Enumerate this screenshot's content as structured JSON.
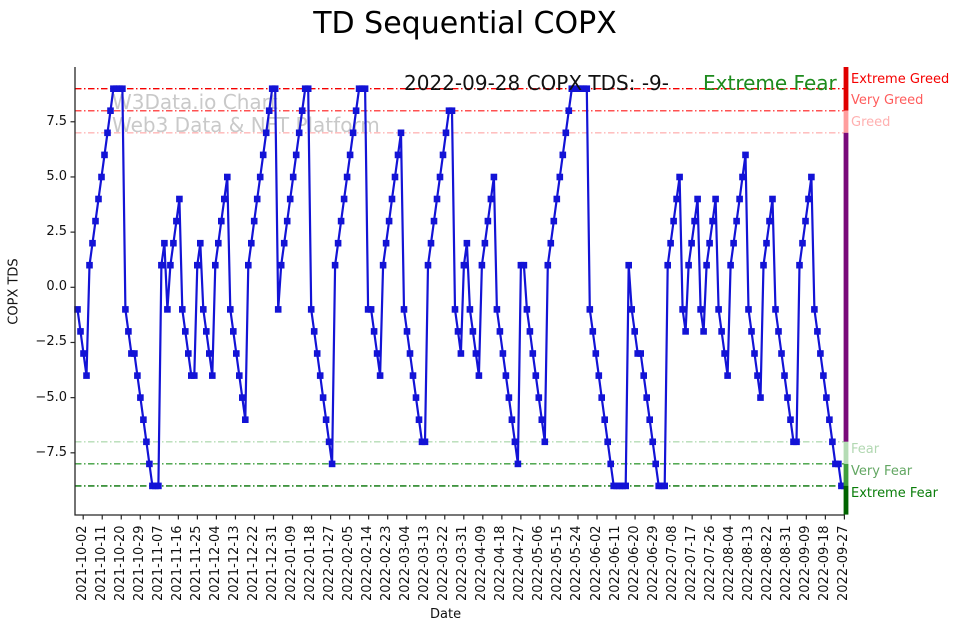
{
  "title": "TD Sequential COPX",
  "annotation": {
    "date_text": "2022-09-28 COPX TDS: -9-",
    "sentiment_text": "Extreme Fear",
    "sentiment_color": "#1e8b1e"
  },
  "watermark": {
    "line1": "W3Data.io Chart",
    "line2": "Web3 Data & NFT Platform"
  },
  "chart_data": {
    "type": "line",
    "title": "TD Sequential COPX",
    "xlabel": "Date",
    "ylabel": "COPX TDS",
    "ylim": [
      -10.3,
      10.0
    ],
    "grid": false,
    "legend_position": "none",
    "line_color": "#1313d6",
    "marker": "square",
    "marker_color": "#1313d6",
    "x_tick_labels": [
      "2021-10-02",
      "2021-10-11",
      "2021-10-20",
      "2021-10-29",
      "2021-11-07",
      "2021-11-16",
      "2021-11-25",
      "2021-12-04",
      "2021-12-13",
      "2021-12-22",
      "2021-12-31",
      "2022-01-09",
      "2022-01-18",
      "2022-01-27",
      "2022-02-05",
      "2022-02-14",
      "2022-02-23",
      "2022-03-04",
      "2022-03-13",
      "2022-03-22",
      "2022-03-31",
      "2022-04-09",
      "2022-04-18",
      "2022-04-27",
      "2022-05-06",
      "2022-05-15",
      "2022-05-24",
      "2022-06-02",
      "2022-06-11",
      "2022-06-20",
      "2022-06-29",
      "2022-07-08",
      "2022-07-17",
      "2022-07-26",
      "2022-08-04",
      "2022-08-13",
      "2022-08-22",
      "2022-08-31",
      "2022-09-09",
      "2022-09-18",
      "2022-09-27"
    ],
    "y_ticks": [
      {
        "value": 7.5,
        "label": "7.5"
      },
      {
        "value": 5.0,
        "label": "5.0"
      },
      {
        "value": 2.5,
        "label": "2.5"
      },
      {
        "value": 0.0,
        "label": "0.0"
      },
      {
        "value": -2.5,
        "label": "−2.5"
      },
      {
        "value": -5.0,
        "label": "−5.0"
      },
      {
        "value": -7.5,
        "label": "−7.5"
      }
    ],
    "thresholds": [
      {
        "value": 9,
        "label": "Extreme Greed",
        "line_color": "#f50000",
        "label_color": "#f50000",
        "label_y_center": 80
      },
      {
        "value": 8,
        "label": "Very Greed",
        "line_color": "#ff5252",
        "label_color": "#ff5c5c",
        "label_y_center": 101
      },
      {
        "value": 7,
        "label": "Greed",
        "line_color": "#ffb6b6",
        "label_color": "#ffb0b0",
        "label_y_center": 123
      },
      {
        "value": -7,
        "label": "Fear",
        "line_color": "#b5dcb5",
        "label_color": "#b2d8b2",
        "label_y_center": 450
      },
      {
        "value": -8,
        "label": "Very Fear",
        "line_color": "#3d9e3d",
        "label_color": "#63a763",
        "label_y_center": 472
      },
      {
        "value": -9,
        "label": "Extreme Fear",
        "line_color": "#007000",
        "label_color": "#0a7d0a",
        "label_y_center": 494
      }
    ],
    "right_spine_segments": [
      {
        "from_value": 10.0,
        "to_value": 8,
        "color": "#e00000"
      },
      {
        "from_value": 8,
        "to_value": 7,
        "color": "#ff9d9d"
      },
      {
        "from_value": 7,
        "to_value": -7,
        "color": "#7a0a7a"
      },
      {
        "from_value": -7,
        "to_value": -8,
        "color": "#b5dcb5"
      },
      {
        "from_value": -8,
        "to_value": -9,
        "color": "#3d9e3d"
      },
      {
        "from_value": -9,
        "to_value": -10.3,
        "color": "#006400"
      }
    ],
    "series": [
      {
        "name": "COPX TDS",
        "values": [
          -1,
          -2,
          -3,
          -4,
          1,
          2,
          3,
          4,
          5,
          6,
          7,
          8,
          9,
          9,
          9,
          9,
          -1,
          -2,
          -3,
          -3,
          -4,
          -5,
          -6,
          -7,
          -8,
          -9,
          -9,
          -9,
          1,
          2,
          -1,
          1,
          2,
          3,
          4,
          -1,
          -2,
          -3,
          -4,
          -4,
          1,
          2,
          -1,
          -2,
          -3,
          -4,
          1,
          2,
          3,
          4,
          5,
          -1,
          -2,
          -3,
          -4,
          -5,
          -6,
          1,
          2,
          3,
          4,
          5,
          6,
          7,
          8,
          9,
          9,
          -1,
          1,
          2,
          3,
          4,
          5,
          6,
          7,
          8,
          9,
          9,
          -1,
          -2,
          -3,
          -4,
          -5,
          -6,
          -7,
          -8,
          1,
          2,
          3,
          4,
          5,
          6,
          7,
          8,
          9,
          9,
          9,
          -1,
          -1,
          -2,
          -3,
          -4,
          1,
          2,
          3,
          4,
          5,
          6,
          7,
          -1,
          -2,
          -3,
          -4,
          -5,
          -6,
          -7,
          -7,
          1,
          2,
          3,
          4,
          5,
          6,
          7,
          8,
          8,
          -1,
          -2,
          -3,
          1,
          2,
          -1,
          -2,
          -3,
          -4,
          1,
          2,
          3,
          4,
          5,
          -1,
          -2,
          -3,
          -4,
          -5,
          -6,
          -7,
          -8,
          1,
          1,
          -1,
          -2,
          -3,
          -4,
          -5,
          -6,
          -7,
          1,
          2,
          3,
          4,
          5,
          6,
          7,
          8,
          9,
          9,
          9,
          9,
          9,
          9,
          -1,
          -2,
          -3,
          -4,
          -5,
          -6,
          -7,
          -8,
          -9,
          -9,
          -9,
          -9,
          -9,
          1,
          -1,
          -2,
          -3,
          -3,
          -4,
          -5,
          -6,
          -7,
          -8,
          -9,
          -9,
          -9,
          1,
          2,
          3,
          4,
          5,
          -1,
          -2,
          1,
          2,
          3,
          4,
          -1,
          -2,
          1,
          2,
          3,
          4,
          -1,
          -2,
          -3,
          -4,
          1,
          2,
          3,
          4,
          5,
          6,
          -1,
          -2,
          -3,
          -4,
          -5,
          1,
          2,
          3,
          4,
          -1,
          -2,
          -3,
          -4,
          -5,
          -6,
          -7,
          -7,
          1,
          2,
          3,
          4,
          5,
          -1,
          -2,
          -3,
          -4,
          -5,
          -6,
          -7,
          -8,
          -8,
          -9,
          -9
        ]
      }
    ]
  }
}
